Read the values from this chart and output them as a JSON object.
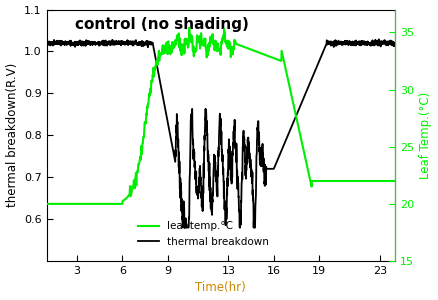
{
  "title": "control (no shading)",
  "xlabel": "Time(hr)",
  "ylabel_left": "thermal breakdown(R.V)",
  "ylabel_right": "Leaf Temp.(°C)",
  "xlim": [
    1,
    24
  ],
  "ylim_left": [
    0.5,
    1.1
  ],
  "ylim_right": [
    15,
    37
  ],
  "xticks": [
    3,
    6,
    9,
    13,
    16,
    19,
    23
  ],
  "yticks_left": [
    0.6,
    0.7,
    0.8,
    0.9,
    1.0,
    1.1
  ],
  "yticks_right": [
    15,
    20,
    25,
    30,
    35
  ],
  "legend_tb": "thermal breakdown",
  "legend_lt": "leaf temp.°C",
  "tb_color": "black",
  "lt_color": "#00ee00",
  "title_fontsize": 11,
  "label_fontsize": 8.5,
  "tick_fontsize": 8,
  "xlabel_color": "#cc8800",
  "background_color": "white"
}
